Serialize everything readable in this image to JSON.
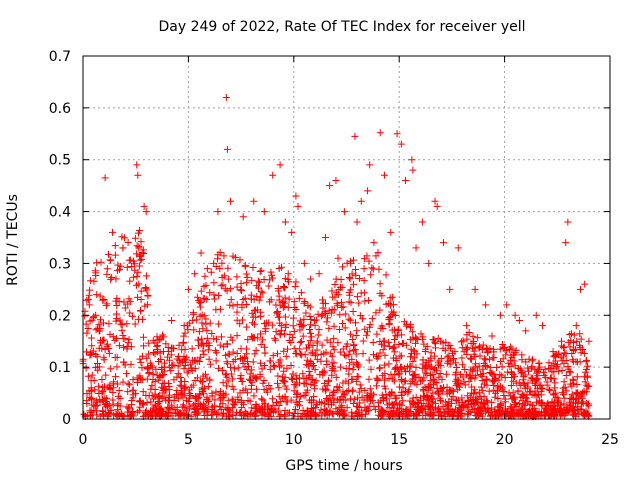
{
  "chart_data": {
    "type": "scatter",
    "title": "Day 249 of 2022, Rate Of TEC Index for receiver yell",
    "xlabel": "GPS time / hours",
    "ylabel": "ROTI / TECUs",
    "xlim": [
      0,
      25
    ],
    "ylim": [
      0,
      0.7
    ],
    "xticks": [
      0,
      5,
      10,
      15,
      20,
      25
    ],
    "yticks": [
      0,
      0.1,
      0.2,
      0.3,
      0.4,
      0.5,
      0.6,
      0.7
    ],
    "xtick_labels": [
      "0",
      "5",
      "10",
      "15",
      "20",
      "25"
    ],
    "ytick_labels": [
      "0",
      "0.1",
      "0.2",
      "0.3",
      "0.4",
      "0.5",
      "0.6",
      "0.7"
    ],
    "grid": true,
    "marker": "+",
    "marker_color": "#ff0000",
    "series": [
      {
        "name": "ROTI",
        "x": [
          6.8,
          6.85,
          12.9,
          14.1,
          14.9,
          15.1,
          15.6,
          15.65,
          2.55,
          2.6,
          1.05,
          9.35,
          9.0,
          10.1,
          10.2,
          11.7,
          12.0,
          13.5,
          13.6,
          14.3,
          15.3,
          16.7,
          16.8,
          2.9,
          3.0,
          5.9,
          6.2,
          6.4,
          7.0,
          7.6,
          8.1,
          8.6,
          9.6,
          9.9,
          11.5,
          12.4,
          13.0,
          13.2,
          14.6,
          16.1,
          17.1,
          17.8,
          18.6,
          19.1,
          20.1,
          20.7,
          21.5,
          22.9,
          23.0,
          23.6,
          0.3,
          0.6,
          1.4,
          1.9,
          3.5,
          4.2,
          4.8,
          5.0,
          5.3,
          5.6,
          10.5,
          10.8,
          11.2,
          12.1,
          12.7,
          13.8,
          15.8,
          16.4,
          17.4,
          18.2,
          19.4,
          19.8,
          20.5,
          21.0,
          21.8,
          22.3,
          22.7,
          23.4,
          23.8,
          24.0
        ],
        "y": [
          0.62,
          0.52,
          0.545,
          0.552,
          0.55,
          0.53,
          0.5,
          0.48,
          0.49,
          0.47,
          0.465,
          0.49,
          0.47,
          0.43,
          0.41,
          0.45,
          0.46,
          0.44,
          0.49,
          0.47,
          0.46,
          0.42,
          0.41,
          0.41,
          0.4,
          0.29,
          0.3,
          0.4,
          0.42,
          0.39,
          0.42,
          0.4,
          0.38,
          0.36,
          0.35,
          0.4,
          0.38,
          0.42,
          0.36,
          0.38,
          0.34,
          0.33,
          0.25,
          0.22,
          0.22,
          0.19,
          0.2,
          0.34,
          0.38,
          0.25,
          0.22,
          0.2,
          0.36,
          0.33,
          0.14,
          0.19,
          0.18,
          0.25,
          0.28,
          0.32,
          0.3,
          0.27,
          0.28,
          0.31,
          0.3,
          0.34,
          0.33,
          0.3,
          0.25,
          0.18,
          0.16,
          0.2,
          0.2,
          0.17,
          0.18,
          0.13,
          0.15,
          0.18,
          0.26,
          0.15
        ]
      }
    ]
  }
}
